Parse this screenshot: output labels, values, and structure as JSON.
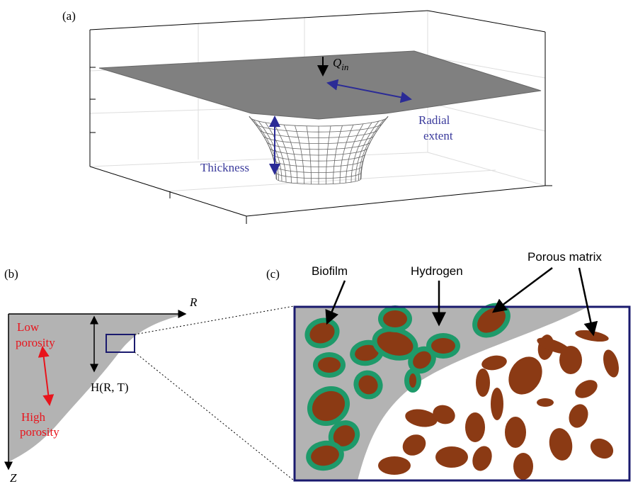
{
  "panel_a": {
    "label": "(a)",
    "flux": {
      "symbol": "Q",
      "subscript": "in"
    },
    "radial_extent": [
      "Radial",
      "extent"
    ],
    "thickness": "Thickness"
  },
  "panel_b": {
    "label": "(b)",
    "r_axis": "R",
    "z_axis": "Z",
    "low_porosity": [
      "Low",
      "porosity"
    ],
    "high_porosity": [
      "High",
      "porosity"
    ],
    "height": "H(R, T)"
  },
  "panel_c": {
    "label": "(c)",
    "biofilm": "Biofilm",
    "hydrogen": "Hydrogen",
    "porous_matrix": "Porous matrix"
  }
}
